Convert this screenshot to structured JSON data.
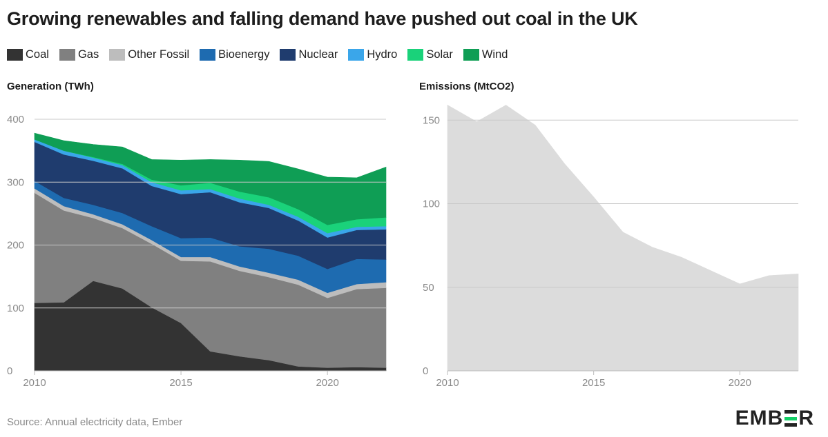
{
  "title": "Growing renewables and falling demand have pushed out coal in the UK",
  "source": "Source: Annual electricity data, Ember",
  "logo": {
    "prefix": "EMB",
    "suffix": "R"
  },
  "legend": [
    {
      "label": "Coal",
      "color": "#333333"
    },
    {
      "label": "Gas",
      "color": "#808080"
    },
    {
      "label": "Other Fossil",
      "color": "#bdbdbd"
    },
    {
      "label": "Bioenergy",
      "color": "#1e6bb0"
    },
    {
      "label": "Nuclear",
      "color": "#1f3c6e"
    },
    {
      "label": "Hydro",
      "color": "#3aa6ea"
    },
    {
      "label": "Solar",
      "color": "#1ad27a"
    },
    {
      "label": "Wind",
      "color": "#0f9e55"
    }
  ],
  "chart_data": [
    {
      "type": "area",
      "stacked": true,
      "title": "Generation (TWh)",
      "x": [
        2010,
        2011,
        2012,
        2013,
        2014,
        2015,
        2016,
        2017,
        2018,
        2019,
        2020,
        2021,
        2022
      ],
      "ylim": [
        0,
        400
      ],
      "xlim": [
        2010,
        2022
      ],
      "yticks": [
        0,
        100,
        200,
        300,
        400
      ],
      "xticks": [
        2010,
        2015,
        2020
      ],
      "grid": true,
      "series": [
        {
          "name": "Coal",
          "color": "#333333",
          "values": [
            108,
            109,
            143,
            131,
            101,
            76,
            31,
            23,
            17,
            7,
            5,
            6,
            5
          ]
        },
        {
          "name": "Gas",
          "color": "#808080",
          "values": [
            175,
            146,
            100,
            96,
            101,
            99,
            143,
            136,
            132,
            130,
            111,
            124,
            127
          ]
        },
        {
          "name": "Other Fossil",
          "color": "#bdbdbd",
          "values": [
            7,
            7,
            6,
            6,
            6,
            6,
            7,
            7,
            7,
            8,
            8,
            8,
            9
          ]
        },
        {
          "name": "Bioenergy",
          "color": "#1e6bb0",
          "values": [
            12,
            13,
            15,
            18,
            22,
            30,
            31,
            32,
            38,
            38,
            38,
            40,
            36
          ]
        },
        {
          "name": "Nuclear",
          "color": "#1f3c6e",
          "values": [
            62,
            69,
            70,
            71,
            64,
            70,
            72,
            70,
            65,
            56,
            50,
            46,
            48
          ]
        },
        {
          "name": "Hydro",
          "color": "#3aa6ea",
          "values": [
            4,
            6,
            5,
            5,
            6,
            6,
            5,
            6,
            5,
            6,
            7,
            5,
            5
          ]
        },
        {
          "name": "Solar",
          "color": "#1ad27a",
          "values": [
            0,
            0,
            1,
            2,
            4,
            8,
            10,
            11,
            12,
            12,
            13,
            12,
            14
          ]
        },
        {
          "name": "Wind",
          "color": "#0f9e55",
          "values": [
            10,
            16,
            20,
            27,
            32,
            40,
            37,
            50,
            57,
            64,
            76,
            66,
            80
          ]
        }
      ]
    },
    {
      "type": "area",
      "title": "Emissions (MtCO2)",
      "x": [
        2010,
        2011,
        2012,
        2013,
        2014,
        2015,
        2016,
        2017,
        2018,
        2019,
        2020,
        2021,
        2022
      ],
      "ylim": [
        0,
        160
      ],
      "xlim": [
        2010,
        2022
      ],
      "yticks": [
        0,
        50,
        100,
        150
      ],
      "xticks": [
        2010,
        2015,
        2020
      ],
      "grid": true,
      "series": [
        {
          "name": "Emissions",
          "color": "#dcdcdc",
          "values": [
            159,
            149,
            159,
            147,
            124,
            104,
            83,
            74,
            68,
            60,
            52,
            57,
            58
          ]
        }
      ]
    }
  ]
}
